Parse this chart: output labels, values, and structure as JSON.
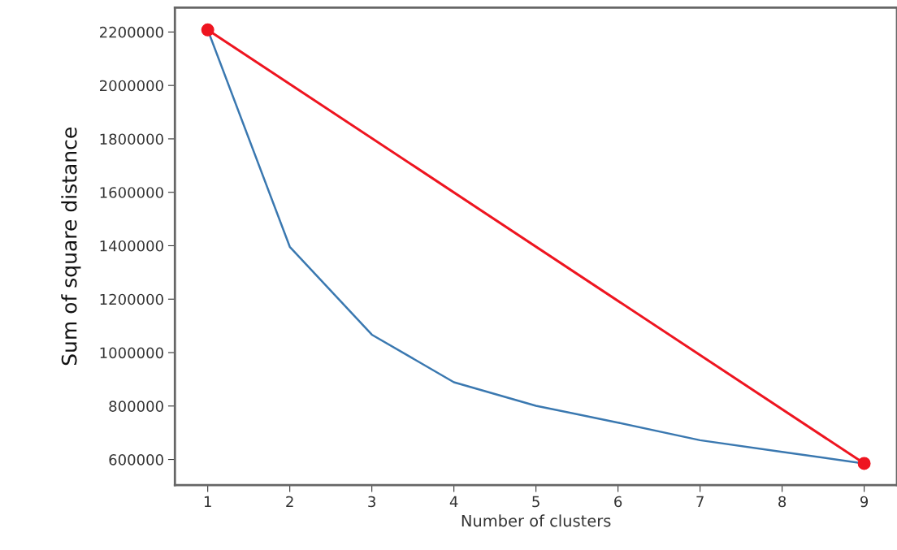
{
  "chart_data": {
    "type": "line",
    "xlabel": "Number of clusters",
    "ylabel": "Sum of square distance",
    "xlim": [
      0.6,
      9.4
    ],
    "xticks": [
      1,
      2,
      3,
      4,
      5,
      6,
      7,
      8,
      9
    ],
    "ylim": [
      504000,
      2291000
    ],
    "yticks": [
      600000,
      800000,
      1000000,
      1200000,
      1400000,
      1600000,
      1800000,
      2000000,
      2200000
    ],
    "grid": false,
    "legend": false,
    "series": [
      {
        "color": "#3a78b0",
        "x": [
          1,
          2,
          3,
          4,
          5,
          6,
          7,
          8,
          9
        ],
        "values": [
          2208000,
          1396000,
          1067000,
          889000,
          801000,
          738000,
          672000,
          628000,
          585000
        ],
        "marker": "none"
      },
      {
        "color": "#ee1520",
        "x": [
          1,
          9
        ],
        "values": [
          2208000,
          585000
        ],
        "marker": "circle"
      }
    ]
  }
}
